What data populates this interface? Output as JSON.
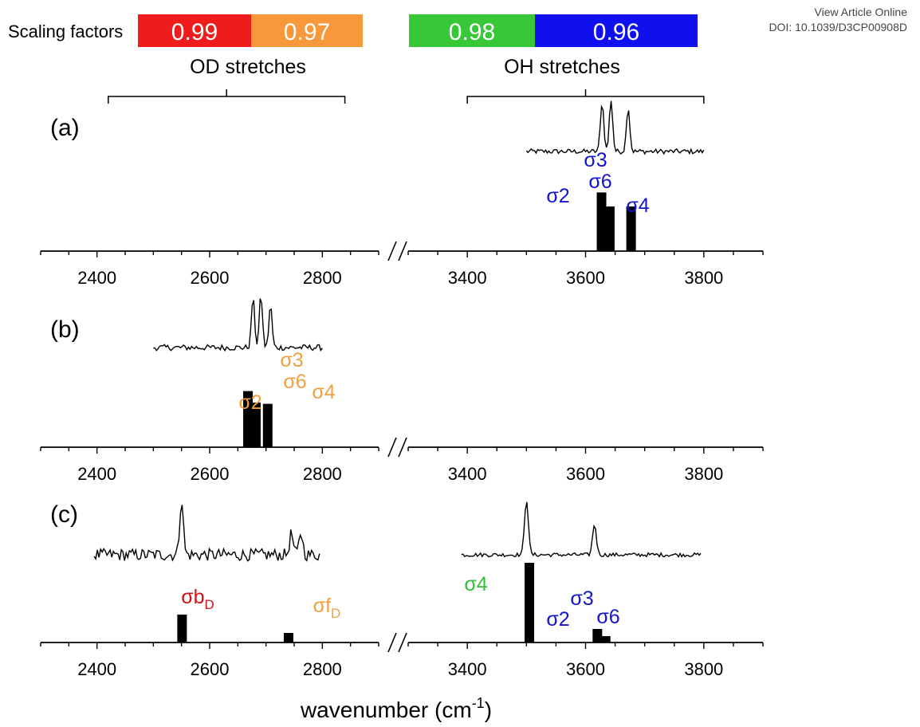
{
  "header": {
    "view_article": "View Article Online",
    "doi": "DOI: 10.1039/D3CP00908D"
  },
  "chart_data": {
    "type": "bar",
    "scaling": {
      "label": "Scaling factors",
      "od_values": [
        {
          "value": "0.99",
          "color": "#ee1c1c"
        },
        {
          "value": "0.97",
          "color": "#f7993a"
        }
      ],
      "oh_values": [
        {
          "value": "0.98",
          "color": "#37c737"
        },
        {
          "value": "0.96",
          "color": "#1010ee"
        }
      ],
      "od_label": "OD stretches",
      "oh_label": "OH stretches",
      "od_bracket_range": [
        2420,
        2840
      ],
      "oh_bracket_range": [
        3400,
        3800
      ]
    },
    "axes": {
      "left_range": [
        2300,
        2900
      ],
      "right_range": [
        3300,
        3900
      ],
      "left_ticks": [
        2400,
        2600,
        2800
      ],
      "right_ticks": [
        3400,
        3600,
        3800
      ],
      "xlabel": "wavenumber (cm",
      "xlabel_sup": "-1",
      "xlabel_end": ")"
    },
    "colors": {
      "red": "#d01414",
      "orange": "#f0a040",
      "green": "#32c032",
      "blue": "#1414cc"
    },
    "panels": [
      {
        "label": "(a)",
        "spectrum": {
          "range": [
            3500,
            3800
          ],
          "peaks": [
            {
              "x": 3628,
              "h": 1.0
            },
            {
              "x": 3643,
              "h": 1.05
            },
            {
              "x": 3672,
              "h": 0.9
            }
          ]
        },
        "bars": [
          {
            "x": 3627,
            "height": 0.92
          },
          {
            "x": 3641,
            "height": 0.7
          },
          {
            "x": 3677,
            "height": 0.7
          }
        ],
        "bar_labels": [
          {
            "name": "σ2",
            "sub": "",
            "color": "blue"
          },
          {
            "name": "σ3",
            "sub": "",
            "color": "blue"
          },
          {
            "name": "σ6",
            "sub": "",
            "color": "blue"
          },
          {
            "name": "σ4",
            "sub": "",
            "color": "blue"
          }
        ]
      },
      {
        "label": "(b)",
        "spectrum": {
          "range": [
            2500,
            2800
          ],
          "peaks": [
            {
              "x": 2677,
              "h": 1.0
            },
            {
              "x": 2691,
              "h": 1.05
            },
            {
              "x": 2708,
              "h": 0.85
            }
          ]
        },
        "bars": [
          {
            "x": 2668,
            "height": 0.88
          },
          {
            "x": 2682,
            "height": 0.7
          },
          {
            "x": 2703,
            "height": 0.68
          }
        ],
        "bar_labels": [
          {
            "name": "σ2",
            "sub": "",
            "color": "orange"
          },
          {
            "name": "σ3",
            "sub": "",
            "color": "orange"
          },
          {
            "name": "σ6",
            "sub": "",
            "color": "orange"
          },
          {
            "name": "σ4",
            "sub": "",
            "color": "orange"
          }
        ]
      },
      {
        "label": "(c)",
        "spectrum_left": {
          "range": [
            2395,
            2795
          ],
          "peaks": [
            {
              "x": 2550,
              "h": 1.0
            },
            {
              "x": 2745,
              "h": 0.38
            },
            {
              "x": 2762,
              "h": 0.4
            }
          ]
        },
        "spectrum_right": {
          "range": [
            3390,
            3795
          ],
          "peaks": [
            {
              "x": 3500,
              "h": 1.0
            },
            {
              "x": 3615,
              "h": 0.55
            }
          ]
        },
        "bars": [
          {
            "x": 2551,
            "height": 0.35
          },
          {
            "x": 2740,
            "height": 0.12
          },
          {
            "x": 3505,
            "height": 1.0
          },
          {
            "x": 3620,
            "height": 0.17
          },
          {
            "x": 3634,
            "height": 0.08
          }
        ],
        "bar_labels": [
          {
            "name": "σb",
            "sub": "D",
            "color": "red"
          },
          {
            "name": "σf",
            "sub": "D",
            "color": "orange"
          },
          {
            "name": "σ4",
            "sub": "",
            "color": "green"
          },
          {
            "name": "σ2",
            "sub": "",
            "color": "blue"
          },
          {
            "name": "σ3",
            "sub": "",
            "color": "blue"
          },
          {
            "name": "σ6",
            "sub": "",
            "color": "blue"
          }
        ]
      }
    ]
  }
}
